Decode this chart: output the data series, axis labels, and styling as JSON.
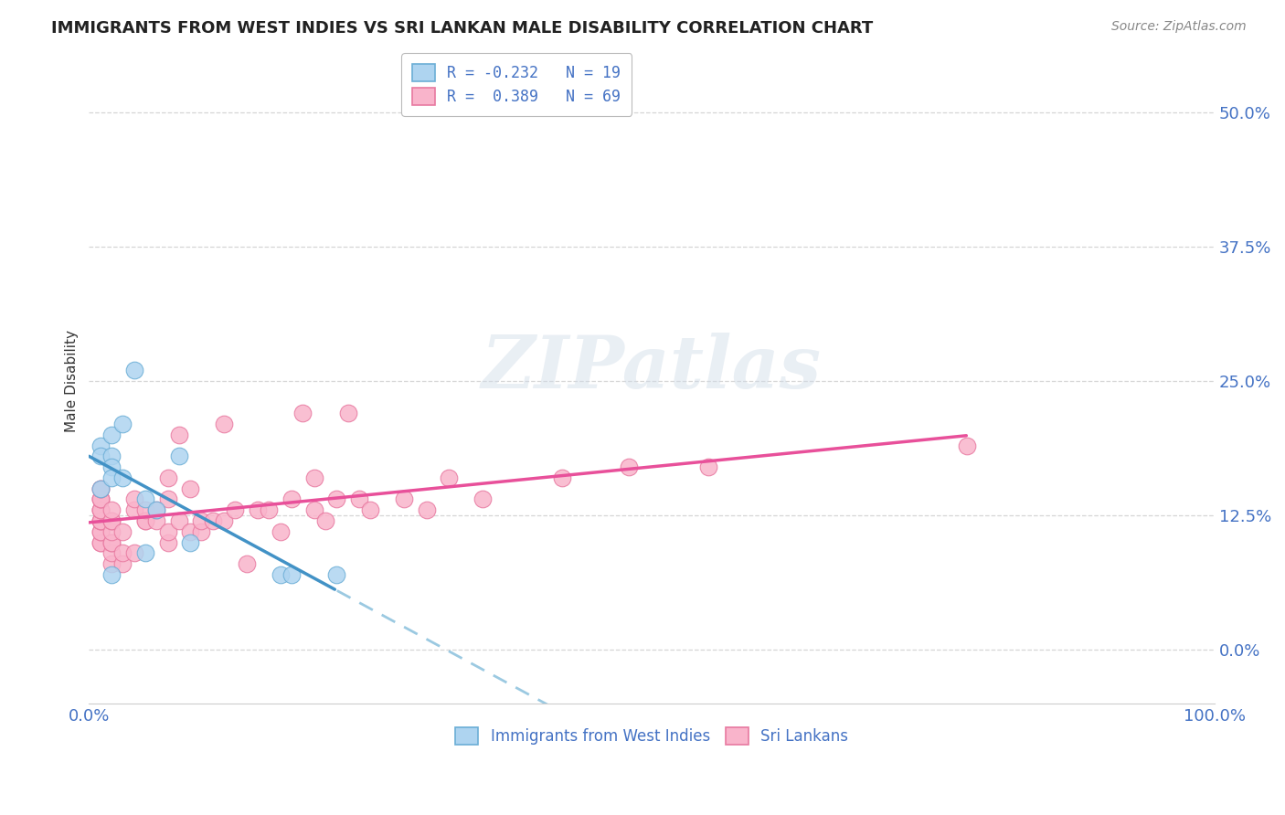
{
  "title": "IMMIGRANTS FROM WEST INDIES VS SRI LANKAN MALE DISABILITY CORRELATION CHART",
  "source": "Source: ZipAtlas.com",
  "ylabel": "Male Disability",
  "ytick_labels": [
    "0.0%",
    "12.5%",
    "25.0%",
    "37.5%",
    "50.0%"
  ],
  "ytick_values": [
    0.0,
    12.5,
    25.0,
    37.5,
    50.0
  ],
  "legend_entry1": "R = -0.232   N = 19",
  "legend_entry2": "R =  0.389   N = 69",
  "legend_label1": "Immigrants from West Indies",
  "legend_label2": "Sri Lankans",
  "blue_scatter_color": "#aed4f0",
  "pink_scatter_color": "#f9b4cb",
  "blue_edge_color": "#6baed6",
  "pink_edge_color": "#e879a0",
  "blue_line_color": "#4292c6",
  "pink_line_color": "#e8509a",
  "blue_dashed_color": "#7ab8d8",
  "west_indies_x": [
    1,
    1,
    1,
    2,
    2,
    2,
    2,
    2,
    3,
    3,
    4,
    5,
    5,
    6,
    8,
    9,
    17,
    18,
    22
  ],
  "west_indies_y": [
    19,
    18,
    15,
    20,
    18,
    17,
    16,
    7,
    21,
    16,
    26,
    14,
    9,
    13,
    18,
    10,
    7,
    7,
    7
  ],
  "sri_lanka_x": [
    1,
    1,
    1,
    1,
    1,
    1,
    1,
    1,
    1,
    1,
    1,
    1,
    1,
    1,
    1,
    2,
    2,
    2,
    2,
    2,
    2,
    2,
    2,
    3,
    3,
    3,
    4,
    4,
    4,
    5,
    5,
    5,
    6,
    6,
    7,
    7,
    7,
    7,
    8,
    8,
    9,
    9,
    10,
    10,
    11,
    12,
    12,
    13,
    14,
    15,
    16,
    17,
    18,
    19,
    20,
    20,
    21,
    22,
    23,
    24,
    25,
    28,
    30,
    32,
    35,
    42,
    48,
    55,
    78
  ],
  "sri_lanka_y": [
    10,
    10,
    11,
    11,
    12,
    12,
    12,
    13,
    13,
    13,
    14,
    14,
    14,
    15,
    15,
    8,
    9,
    10,
    10,
    11,
    12,
    12,
    13,
    8,
    9,
    11,
    9,
    13,
    14,
    12,
    12,
    13,
    12,
    13,
    10,
    11,
    14,
    16,
    12,
    20,
    11,
    15,
    11,
    12,
    12,
    12,
    21,
    13,
    8,
    13,
    13,
    11,
    14,
    22,
    13,
    16,
    12,
    14,
    22,
    14,
    13,
    14,
    13,
    16,
    14,
    16,
    17,
    17,
    19
  ],
  "xlim": [
    0.0,
    100.0
  ],
  "ylim": [
    -5.0,
    55.0
  ],
  "xtick_positions": [
    0,
    10,
    20,
    30,
    40,
    50,
    60,
    70,
    80,
    90,
    100
  ],
  "watermark": "ZIPatlas",
  "background_color": "#ffffff",
  "grid_color": "#cccccc"
}
